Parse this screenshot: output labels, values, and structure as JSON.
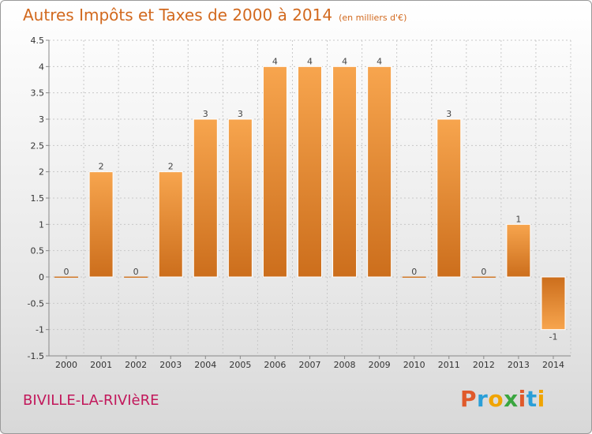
{
  "title": "Autres Impôts et Taxes de 2000 à 2014",
  "subtitle": "(en milliers d'€)",
  "commune": "BIVILLE-LA-RIVIèRE",
  "logo": {
    "text": "Proxiti"
  },
  "colors": {
    "bar_light": "#f7a54e",
    "bar_dark": "#cc6e1c",
    "title": "#d2691e",
    "commune": "#c2185b"
  },
  "chart_data": {
    "type": "bar",
    "title": "Autres Impôts et Taxes de 2000 à 2014",
    "subtitle": "(en milliers d'€)",
    "categories": [
      "2000",
      "2001",
      "2002",
      "2003",
      "2004",
      "2005",
      "2006",
      "2007",
      "2008",
      "2009",
      "2010",
      "2011",
      "2012",
      "2013",
      "2014"
    ],
    "values": [
      0,
      2,
      0,
      2,
      3,
      3,
      4,
      4,
      4,
      4,
      0,
      3,
      0,
      1,
      -1
    ],
    "value_labels": [
      "0",
      "2",
      "0",
      "2",
      "3",
      "3",
      "4",
      "4",
      "4",
      "4",
      "0",
      "3",
      "0",
      "1",
      "-1"
    ],
    "ylim": [
      -1.5,
      4.5
    ],
    "yticks": [
      "-1.5",
      "-1",
      "-0.5",
      "0",
      "0.5",
      "1",
      "1.5",
      "2",
      "2.5",
      "3",
      "3.5",
      "4",
      "4.5"
    ],
    "grid": true
  }
}
